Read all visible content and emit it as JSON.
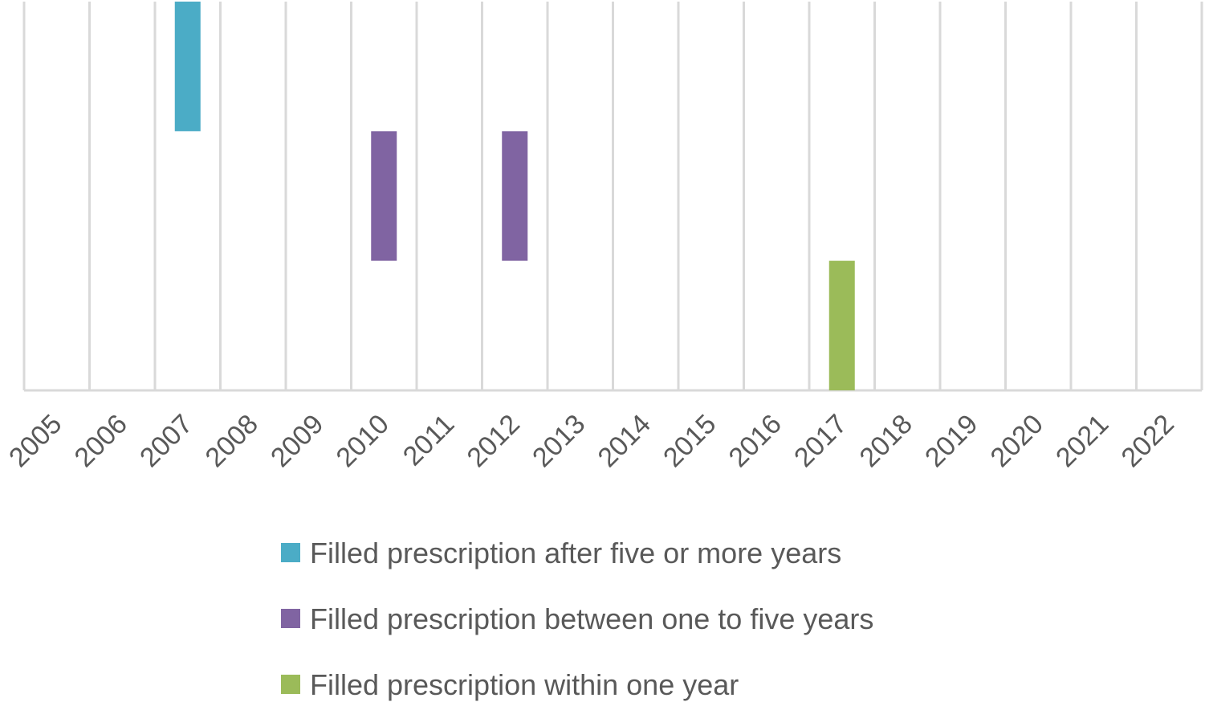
{
  "chart_data": {
    "type": "bar",
    "title": "",
    "xlabel": "",
    "ylabel": "",
    "grid": "vertical",
    "legend_position": "bottom",
    "categories": [
      "2005",
      "2006",
      "2007",
      "2008",
      "2009",
      "2010",
      "2011",
      "2012",
      "2013",
      "2014",
      "2015",
      "2016",
      "2017",
      "2018",
      "2019",
      "2020",
      "2021",
      "2022"
    ],
    "ylim": [
      0,
      3
    ],
    "series": [
      {
        "name": "Filled prescription after five or more years",
        "color": "#4bacc6",
        "points": [
          {
            "x": "2007",
            "low": 2,
            "high": 3
          }
        ]
      },
      {
        "name": "Filled prescription between one to five years",
        "color": "#8064a2",
        "points": [
          {
            "x": "2010",
            "low": 1,
            "high": 2
          },
          {
            "x": "2012",
            "low": 1,
            "high": 2
          }
        ]
      },
      {
        "name": "Filled prescription within one year",
        "color": "#9bbb59",
        "points": [
          {
            "x": "2017",
            "low": 0,
            "high": 1
          }
        ]
      }
    ]
  }
}
